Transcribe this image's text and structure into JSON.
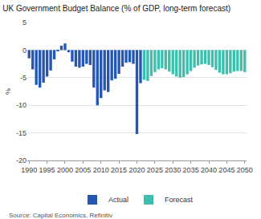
{
  "chart_data": {
    "type": "bar",
    "title": "UK Government Budget Balance (% of GDP, long-term forecast)",
    "y_label": "%",
    "source": "Source: Capital Economics, Refinitiv",
    "x": [
      1990,
      1991,
      1992,
      1993,
      1994,
      1995,
      1996,
      1997,
      1998,
      1999,
      2000,
      2001,
      2002,
      2003,
      2004,
      2005,
      2006,
      2007,
      2008,
      2009,
      2010,
      2011,
      2012,
      2013,
      2014,
      2015,
      2016,
      2017,
      2018,
      2019,
      2020,
      2021,
      2022,
      2023,
      2024,
      2025,
      2026,
      2027,
      2028,
      2029,
      2030,
      2031,
      2032,
      2033,
      2034,
      2035,
      2036,
      2037,
      2038,
      2039,
      2040,
      2041,
      2042,
      2043,
      2044,
      2045,
      2046,
      2047,
      2048,
      2049,
      2050
    ],
    "series": [
      {
        "name": "Actual",
        "color": "#2456b4",
        "values": [
          -1.5,
          -3.5,
          -6.3,
          -6.8,
          -5.9,
          -4.8,
          -3.7,
          -1.7,
          -0.1,
          0.8,
          1.2,
          -0.4,
          -2.1,
          -3.0,
          -3.2,
          -3.0,
          -2.5,
          -2.7,
          -6.8,
          -10.0,
          -8.7,
          -7.3,
          -7.6,
          -5.5,
          -5.2,
          -4.3,
          -3.0,
          -2.3,
          -2.2,
          -2.5,
          -15.2,
          -6.0,
          null,
          null,
          null,
          null,
          null,
          null,
          null,
          null,
          null,
          null,
          null,
          null,
          null,
          null,
          null,
          null,
          null,
          null,
          null,
          null,
          null,
          null,
          null,
          null,
          null,
          null,
          null,
          null,
          null
        ]
      },
      {
        "name": "Forecast",
        "color": "#3dbfae",
        "values": [
          null,
          null,
          null,
          null,
          null,
          null,
          null,
          null,
          null,
          null,
          null,
          null,
          null,
          null,
          null,
          null,
          null,
          null,
          null,
          null,
          null,
          null,
          null,
          null,
          null,
          null,
          null,
          null,
          null,
          null,
          null,
          null,
          -5.4,
          -5.6,
          -4.7,
          -4.0,
          -3.5,
          -3.3,
          -3.5,
          -3.9,
          -4.4,
          -4.8,
          -5.0,
          -4.9,
          -4.4,
          -3.8,
          -3.2,
          -2.8,
          -2.6,
          -2.5,
          -2.7,
          -3.1,
          -3.6,
          -4.1,
          -4.4,
          -4.4,
          -4.2,
          -3.9,
          -3.8,
          -3.8,
          -4.0
        ]
      }
    ],
    "xlim": [
      1989.5,
      2050.5
    ],
    "xticks": [
      1990,
      1995,
      2000,
      2005,
      2010,
      2015,
      2020,
      2025,
      2030,
      2035,
      2040,
      2045,
      2050
    ],
    "ylim": [
      -20,
      5
    ],
    "yticks": [
      -20,
      -15,
      -10,
      -5,
      0,
      5
    ],
    "grid": true,
    "legend": "bottom"
  }
}
